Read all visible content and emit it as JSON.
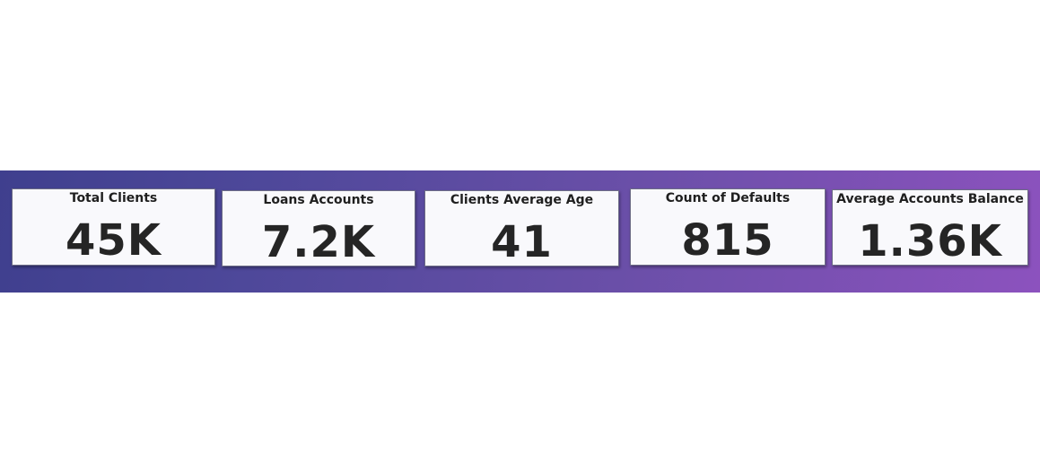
{
  "cards": [
    {
      "title": "Total Clients",
      "value": "45K"
    },
    {
      "title": "Loans Accounts",
      "value": "7.2K"
    },
    {
      "title": "Clients Average Age",
      "value": "41"
    },
    {
      "title": "Count of Defaults",
      "value": "815"
    },
    {
      "title": "Average Accounts Balance",
      "value": "1.36K"
    }
  ],
  "colors": {
    "banner_start": "#3f3f8e",
    "banner_end": "#8c52be",
    "card_background": "#f9f9fc",
    "text": "#252525"
  }
}
